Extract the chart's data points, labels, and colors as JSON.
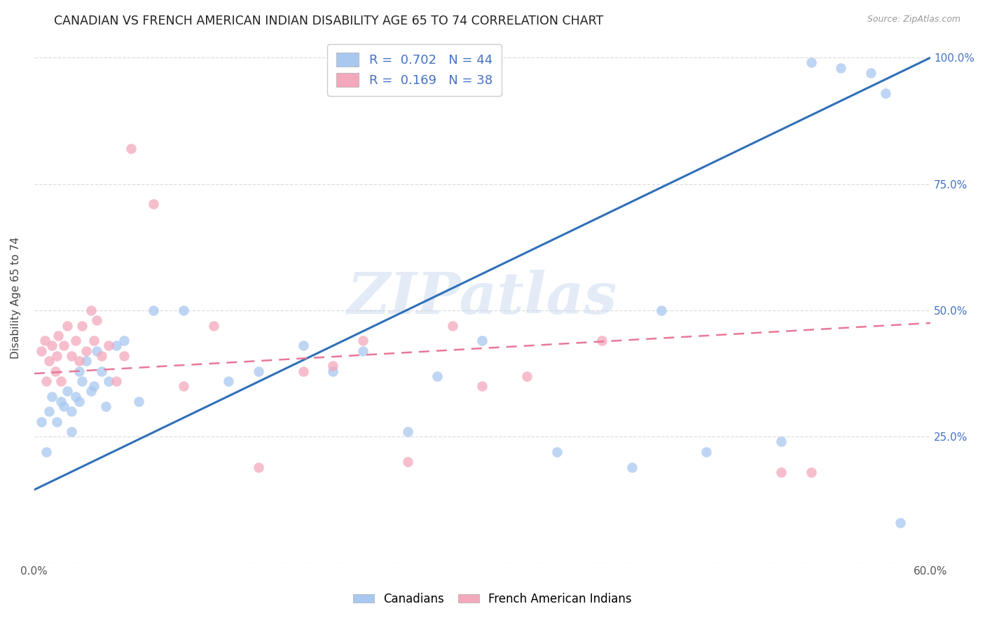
{
  "title": "CANADIAN VS FRENCH AMERICAN INDIAN DISABILITY AGE 65 TO 74 CORRELATION CHART",
  "source": "Source: ZipAtlas.com",
  "ylabel": "Disability Age 65 to 74",
  "xmin": 0.0,
  "xmax": 0.6,
  "ymin": 0.0,
  "ymax": 1.05,
  "yticks": [
    0.0,
    0.25,
    0.5,
    0.75,
    1.0
  ],
  "ytick_labels": [
    "",
    "25.0%",
    "50.0%",
    "75.0%",
    "100.0%"
  ],
  "xticks": [
    0.0,
    0.1,
    0.2,
    0.3,
    0.4,
    0.5,
    0.6
  ],
  "xtick_labels": [
    "0.0%",
    "",
    "",
    "",
    "",
    "",
    "60.0%"
  ],
  "canadian_r": 0.702,
  "canadian_n": 44,
  "french_r": 0.169,
  "french_n": 38,
  "canadian_color": "#A8C8F0",
  "french_color": "#F4A8BC",
  "trend_canadian_color": "#3070B8",
  "trend_french_color": "#E87898",
  "watermark": "ZIPatlas",
  "canadians_x": [
    0.005,
    0.008,
    0.01,
    0.012,
    0.015,
    0.018,
    0.02,
    0.022,
    0.025,
    0.025,
    0.028,
    0.03,
    0.03,
    0.032,
    0.035,
    0.038,
    0.04,
    0.042,
    0.045,
    0.048,
    0.05,
    0.055,
    0.06,
    0.07,
    0.08,
    0.1,
    0.13,
    0.15,
    0.18,
    0.2,
    0.22,
    0.25,
    0.27,
    0.3,
    0.35,
    0.4,
    0.42,
    0.45,
    0.5,
    0.52,
    0.54,
    0.56,
    0.57,
    0.58
  ],
  "canadians_y": [
    0.28,
    0.22,
    0.3,
    0.33,
    0.28,
    0.32,
    0.31,
    0.34,
    0.3,
    0.26,
    0.33,
    0.38,
    0.32,
    0.36,
    0.4,
    0.34,
    0.35,
    0.42,
    0.38,
    0.31,
    0.36,
    0.43,
    0.44,
    0.32,
    0.5,
    0.5,
    0.36,
    0.38,
    0.43,
    0.38,
    0.42,
    0.26,
    0.37,
    0.44,
    0.22,
    0.19,
    0.5,
    0.22,
    0.24,
    0.99,
    0.98,
    0.97,
    0.93,
    0.08
  ],
  "french_x": [
    0.005,
    0.007,
    0.008,
    0.01,
    0.012,
    0.014,
    0.015,
    0.016,
    0.018,
    0.02,
    0.022,
    0.025,
    0.028,
    0.03,
    0.032,
    0.035,
    0.038,
    0.04,
    0.042,
    0.045,
    0.05,
    0.055,
    0.06,
    0.065,
    0.08,
    0.1,
    0.12,
    0.15,
    0.18,
    0.2,
    0.22,
    0.25,
    0.28,
    0.3,
    0.33,
    0.38,
    0.5,
    0.52
  ],
  "french_y": [
    0.42,
    0.44,
    0.36,
    0.4,
    0.43,
    0.38,
    0.41,
    0.45,
    0.36,
    0.43,
    0.47,
    0.41,
    0.44,
    0.4,
    0.47,
    0.42,
    0.5,
    0.44,
    0.48,
    0.41,
    0.43,
    0.36,
    0.41,
    0.82,
    0.71,
    0.35,
    0.47,
    0.19,
    0.38,
    0.39,
    0.44,
    0.2,
    0.47,
    0.35,
    0.37,
    0.44,
    0.18,
    0.18
  ],
  "trend_canadian_x0": 0.0,
  "trend_canadian_y0": 0.145,
  "trend_canadian_x1": 0.6,
  "trend_canadian_y1": 1.0,
  "trend_french_x0": 0.0,
  "trend_french_y0": 0.375,
  "trend_french_x1": 0.6,
  "trend_french_y1": 0.475
}
